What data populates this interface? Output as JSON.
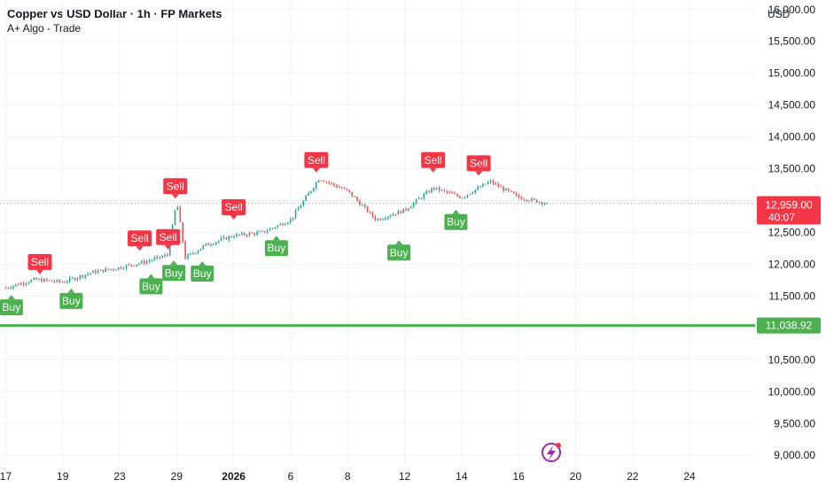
{
  "header": {
    "title": "Copper vs USD Dollar · 1h · FP Markets",
    "indicator": "A+ Algo - Trade",
    "currency": "USD"
  },
  "colors": {
    "up": "#26a69a",
    "down": "#ef5350",
    "buy_label": "#4caf50",
    "sell_label": "#f23645",
    "level_line": "#4caf50",
    "price_tag": "#f23645",
    "grid": "#f0f3fa",
    "text": "#131722"
  },
  "chart_data": {
    "type": "candlestick",
    "y_axis": {
      "ticks": [
        "16,000.00",
        "15,500.00",
        "15,000.00",
        "14,500.00",
        "14,000.00",
        "13,500.00",
        "13,000.00",
        "12,500.00",
        "12,000.00",
        "11,500.00",
        "11,000.00",
        "10,500.00",
        "10,000.00",
        "9,500.00",
        "9,000.00"
      ],
      "tick_values": [
        16000,
        15500,
        15000,
        14500,
        14000,
        13500,
        13000,
        12500,
        12000,
        11500,
        11000,
        10500,
        10000,
        9500,
        9000
      ],
      "range": [
        8850,
        16150
      ]
    },
    "x_axis": {
      "ticks": [
        "17",
        "19",
        "23",
        "29",
        "2026",
        "6",
        "8",
        "12",
        "14",
        "16",
        "20",
        "22",
        "24"
      ],
      "tick_pos": [
        0.0,
        2.0,
        4.0,
        6.0,
        8.0,
        10.0,
        12.0,
        14.0,
        16.0,
        18.0,
        20.0,
        22.0,
        24.0
      ],
      "range": [
        -0.2,
        26.3
      ],
      "bold_tick": "2026"
    },
    "price_path": [
      [
        0.0,
        11630
      ],
      [
        1.0,
        11760
      ],
      [
        2.0,
        11720
      ],
      [
        3.0,
        11870
      ],
      [
        4.0,
        11950
      ],
      [
        5.0,
        12050
      ],
      [
        5.7,
        12150
      ],
      [
        6.0,
        13000
      ],
      [
        6.3,
        12100
      ],
      [
        7.0,
        12300
      ],
      [
        8.0,
        12450
      ],
      [
        9.0,
        12500
      ],
      [
        10.0,
        12700
      ],
      [
        11.0,
        13350
      ],
      [
        12.0,
        13150
      ],
      [
        13.0,
        12700
      ],
      [
        14.0,
        12850
      ],
      [
        15.0,
        13200
      ],
      [
        16.0,
        13050
      ],
      [
        17.0,
        13300
      ],
      [
        18.0,
        13050
      ],
      [
        19.0,
        12959
      ]
    ],
    "candle_count": 212,
    "last_price": "12,959.00",
    "last_price_value": 12959,
    "countdown": "40:07",
    "level_line": {
      "value": 11038.92,
      "label": "11,038.92"
    },
    "signals": [
      {
        "type": "Buy",
        "x": 0.2,
        "price": 11560
      },
      {
        "type": "Sell",
        "x": 1.2,
        "price": 11800
      },
      {
        "type": "Buy",
        "x": 2.3,
        "price": 11660
      },
      {
        "type": "Sell",
        "x": 4.7,
        "price": 12170
      },
      {
        "type": "Buy",
        "x": 5.1,
        "price": 11890
      },
      {
        "type": "Sell",
        "x": 5.7,
        "price": 12190
      },
      {
        "type": "Buy",
        "x": 5.9,
        "price": 12100
      },
      {
        "type": "Sell",
        "x": 5.95,
        "price": 12990
      },
      {
        "type": "Buy",
        "x": 6.9,
        "price": 12090
      },
      {
        "type": "Sell",
        "x": 8.0,
        "price": 12660
      },
      {
        "type": "Buy",
        "x": 9.5,
        "price": 12490
      },
      {
        "type": "Sell",
        "x": 10.9,
        "price": 13400
      },
      {
        "type": "Buy",
        "x": 13.8,
        "price": 12420
      },
      {
        "type": "Sell",
        "x": 15.0,
        "price": 13400
      },
      {
        "type": "Buy",
        "x": 15.8,
        "price": 12900
      },
      {
        "type": "Sell",
        "x": 16.6,
        "price": 13350
      }
    ]
  }
}
